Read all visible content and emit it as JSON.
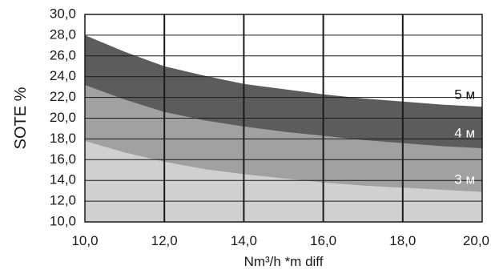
{
  "chart_data": {
    "type": "area",
    "title": "",
    "xlabel": "Nm³/h *m diff",
    "ylabel": "SOTE %",
    "xlim": [
      10,
      20
    ],
    "ylim": [
      10,
      30
    ],
    "x_ticks": [
      10,
      12,
      14,
      16,
      18,
      20
    ],
    "x_tick_labels": [
      "10,0",
      "12,0",
      "14,0",
      "16,0",
      "18,0",
      "20,0"
    ],
    "y_ticks": [
      10,
      12,
      14,
      16,
      18,
      20,
      22,
      24,
      26,
      28,
      30
    ],
    "y_tick_labels": [
      "10,0",
      "12,0",
      "14,0",
      "16,0",
      "18,0",
      "20,0",
      "22,0",
      "24,0",
      "26,0",
      "28,0",
      "30,0"
    ],
    "grid": true,
    "x": [
      10,
      11,
      12,
      13,
      14,
      15,
      16,
      17,
      18,
      19,
      20
    ],
    "series": [
      {
        "name": "3 м",
        "values": [
          17.8,
          16.7,
          15.8,
          15.1,
          14.6,
          14.2,
          13.8,
          13.5,
          13.3,
          13.1,
          12.9
        ],
        "color": "#d0d0d0",
        "label_color": "#ffffff"
      },
      {
        "name": "4 м",
        "values": [
          23.2,
          21.8,
          20.6,
          19.8,
          19.2,
          18.7,
          18.3,
          17.9,
          17.6,
          17.3,
          17.1
        ],
        "color": "#a1a1a1",
        "label_color": "#ffffff"
      },
      {
        "name": "5 м",
        "values": [
          28.0,
          26.4,
          25.0,
          24.1,
          23.3,
          22.8,
          22.3,
          21.9,
          21.6,
          21.3,
          21.1
        ],
        "color": "#5c5c5c",
        "label_color": "#111111"
      }
    ],
    "band_labels": [
      {
        "text": "5 м",
        "x": 19.3,
        "y": 22.2
      },
      {
        "text": "4 м",
        "x": 19.3,
        "y": 18.5
      },
      {
        "text": "3 м",
        "x": 19.3,
        "y": 14.0
      }
    ]
  }
}
